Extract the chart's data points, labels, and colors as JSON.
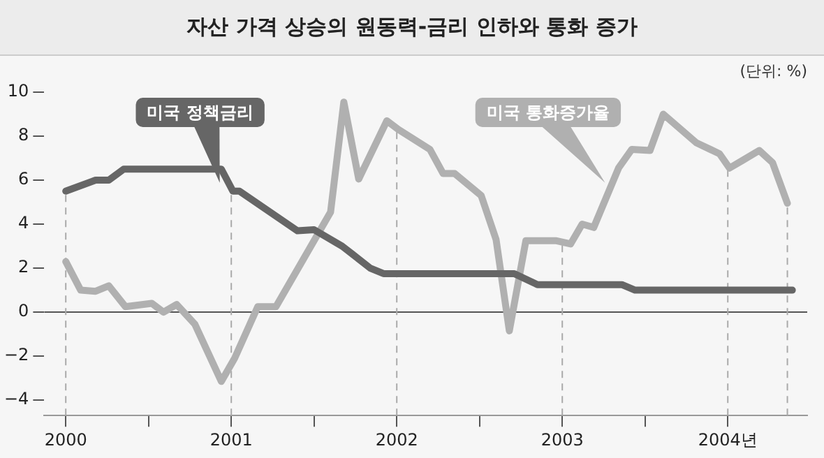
{
  "chart_data": {
    "type": "line",
    "title": "자산 가격 상승의 원동력-금리 인하와 통화 증가",
    "annotations": [
      "(단위: %)"
    ],
    "xlim": [
      1999.87,
      2004.48
    ],
    "ylim": [
      -4.7,
      10
    ],
    "xticks": [
      2000,
      {
        "value": 2000.5,
        "label": null
      },
      2001,
      {
        "value": 2001.5,
        "label": null
      },
      2002,
      {
        "value": 2002.5,
        "label": null
      },
      2003,
      {
        "value": 2003.5,
        "label": null
      },
      {
        "value": 2004,
        "label": "2004년"
      }
    ],
    "yticks": [
      -4,
      -2,
      0,
      2,
      4,
      6,
      8,
      10
    ],
    "grid": false,
    "legend": false,
    "marker": "none",
    "line_style": "solid",
    "ref_lines": [
      {
        "axis": "y",
        "value": 0,
        "color": "#555555",
        "line_style": "solid"
      },
      {
        "axis": "x",
        "value": 2000,
        "color": "#aaaaaa",
        "line_style": "dashed"
      },
      {
        "axis": "x",
        "value": 2001,
        "color": "#aaaaaa",
        "line_style": "dashed"
      },
      {
        "axis": "x",
        "value": 2002,
        "color": "#aaaaaa",
        "line_style": "dashed"
      },
      {
        "axis": "x",
        "value": 2003,
        "color": "#aaaaaa",
        "line_style": "dashed"
      },
      {
        "axis": "x",
        "value": 2004,
        "color": "#aaaaaa",
        "line_style": "dashed"
      },
      {
        "axis": "x",
        "value": 2004.36,
        "color": "#aaaaaa",
        "line_style": "dashed"
      }
    ],
    "series": [
      {
        "name": "미국 정책금리",
        "color": "#666666",
        "x": [
          2000.0,
          2000.18,
          2000.26,
          2000.35,
          2000.94,
          2001.01,
          2001.05,
          2001.4,
          2001.5,
          2001.67,
          2001.84,
          2001.92,
          2002.71,
          2002.85,
          2003.36,
          2003.44,
          2004.39
        ],
        "values": [
          5.5,
          6.0,
          6.0,
          6.5,
          6.5,
          5.5,
          5.5,
          3.7,
          3.75,
          3.0,
          2.0,
          1.75,
          1.75,
          1.25,
          1.25,
          1.0,
          1.0
        ]
      },
      {
        "name": "미국 통화증가율",
        "color": "#b0b0b0",
        "x": [
          2000.0,
          2000.09,
          2000.18,
          2000.26,
          2000.36,
          2000.52,
          2000.59,
          2000.67,
          2000.78,
          2000.94,
          2001.02,
          2001.16,
          2001.27,
          2001.6,
          2001.68,
          2001.77,
          2001.94,
          2002.01,
          2002.2,
          2002.28,
          2002.35,
          2002.51,
          2002.6,
          2002.68,
          2002.78,
          2002.96,
          2003.05,
          2003.12,
          2003.19,
          2003.34,
          2003.42,
          2003.53,
          2003.61,
          2003.81,
          2003.95,
          2004.01,
          2004.09,
          2004.19,
          2004.27,
          2004.36
        ],
        "values": [
          2.3,
          1.0,
          0.95,
          1.2,
          0.25,
          0.4,
          0.0,
          0.35,
          -0.55,
          -3.15,
          -2.1,
          0.25,
          0.25,
          4.55,
          9.55,
          6.05,
          8.7,
          8.3,
          7.4,
          6.3,
          6.3,
          5.3,
          3.3,
          -0.85,
          3.25,
          3.25,
          3.1,
          4.0,
          3.85,
          6.55,
          7.4,
          7.35,
          9.0,
          7.7,
          7.2,
          6.55,
          6.9,
          7.35,
          6.8,
          4.95
        ]
      }
    ]
  }
}
